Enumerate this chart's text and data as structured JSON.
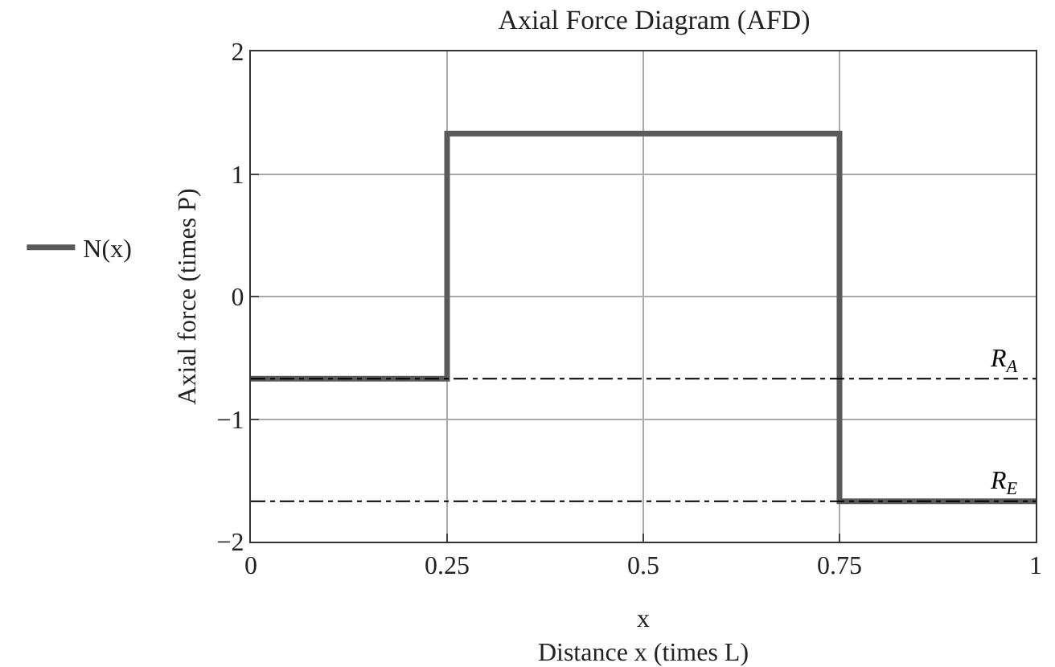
{
  "chart_data": {
    "type": "step",
    "title": "Axial Force Diagram (AFD)",
    "xlabel": "x\nDistance x (times L)",
    "ylabel": "Axial force (times P)",
    "x": [
      0,
      0.25,
      0.75,
      1
    ],
    "series": [
      {
        "name": "N(x)",
        "color": "#5a5a5a",
        "values": [
          -0.67,
          1.33,
          -1.67,
          -1.67
        ]
      }
    ],
    "xlim": [
      0,
      1
    ],
    "xticks": [
      0,
      0.25,
      0.5,
      0.75,
      1
    ],
    "ylim": [
      -2,
      2
    ],
    "yticks": [
      -2,
      -1,
      0,
      1,
      2
    ],
    "ref_lines": [
      {
        "axis": "y",
        "value": -0.67,
        "label": "R$_{A}$",
        "color": "#000000",
        "line_style": "dashdot"
      },
      {
        "axis": "y",
        "value": -1.67,
        "label": "R$_{E}$",
        "color": "#000000",
        "line_style": "dashdot"
      }
    ],
    "grid": true,
    "legend": "left",
    "line_style": "solid",
    "marker": "none"
  }
}
